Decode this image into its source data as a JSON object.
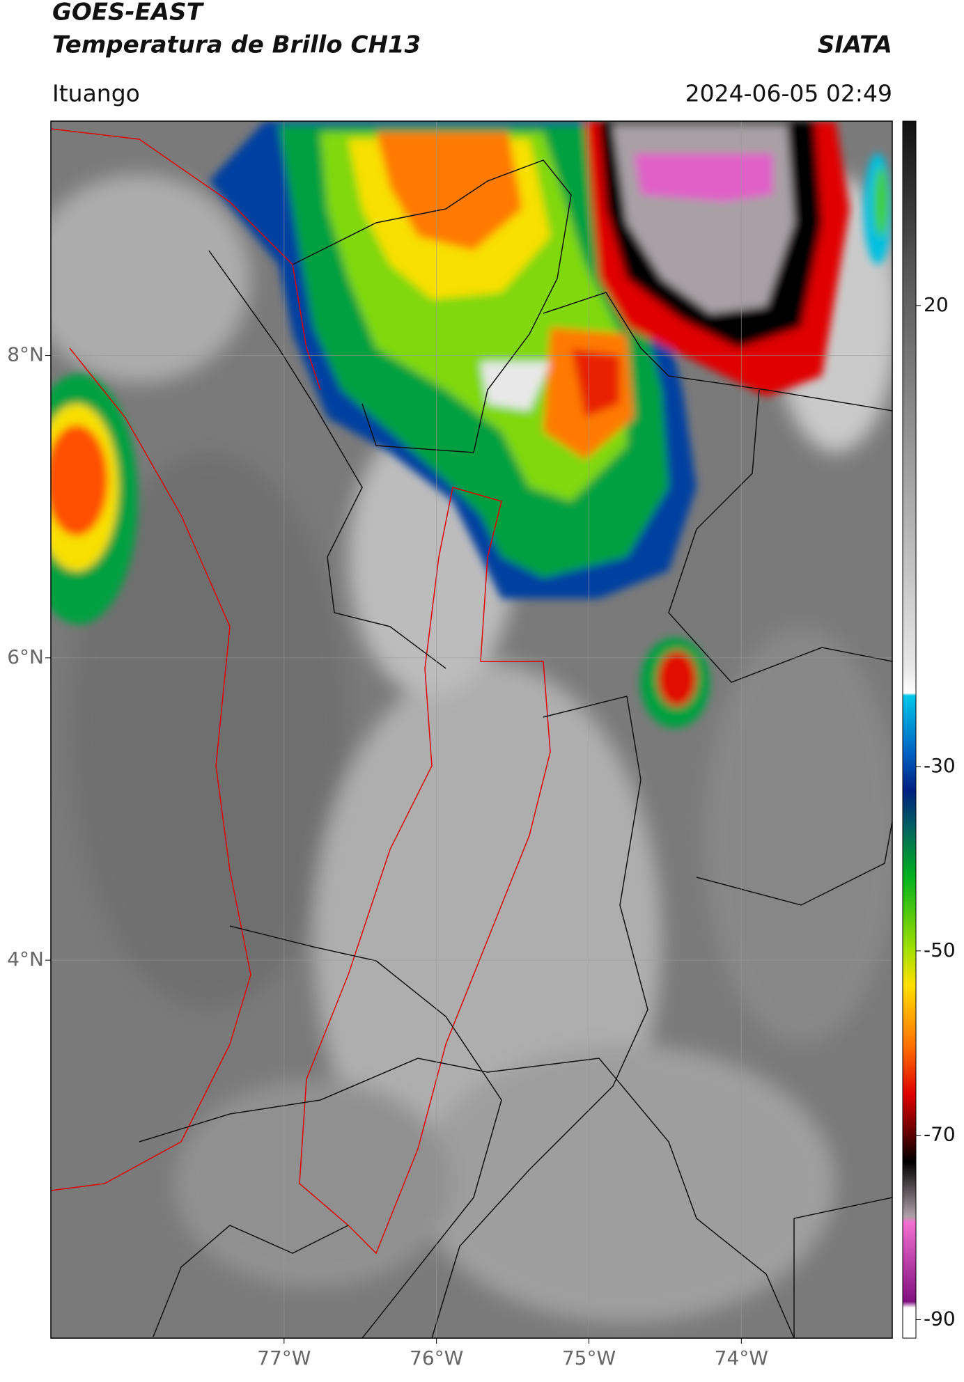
{
  "header": {
    "title": "GOES-EAST",
    "subtitle": "Temperatura de Brillo CH13",
    "source": "SIATA",
    "location": "Ituango",
    "datetime": "2024-06-05 02:49"
  },
  "map": {
    "xlim": [
      -78.53,
      -73.01
    ],
    "ylim": [
      1.5,
      9.55
    ],
    "xticks": [
      {
        "value": -77,
        "label": "77°W"
      },
      {
        "value": -76,
        "label": "76°W"
      },
      {
        "value": -75,
        "label": "75°W"
      },
      {
        "value": -74,
        "label": "74°W"
      }
    ],
    "yticks": [
      {
        "value": 8,
        "label": "8°N"
      },
      {
        "value": 6,
        "label": "6°N"
      },
      {
        "value": 4,
        "label": "4°N"
      }
    ],
    "grid": true
  },
  "colorbar": {
    "lim": [
      -92,
      40
    ],
    "ticks": [
      20,
      -30,
      -50,
      -70,
      -90
    ]
  }
}
